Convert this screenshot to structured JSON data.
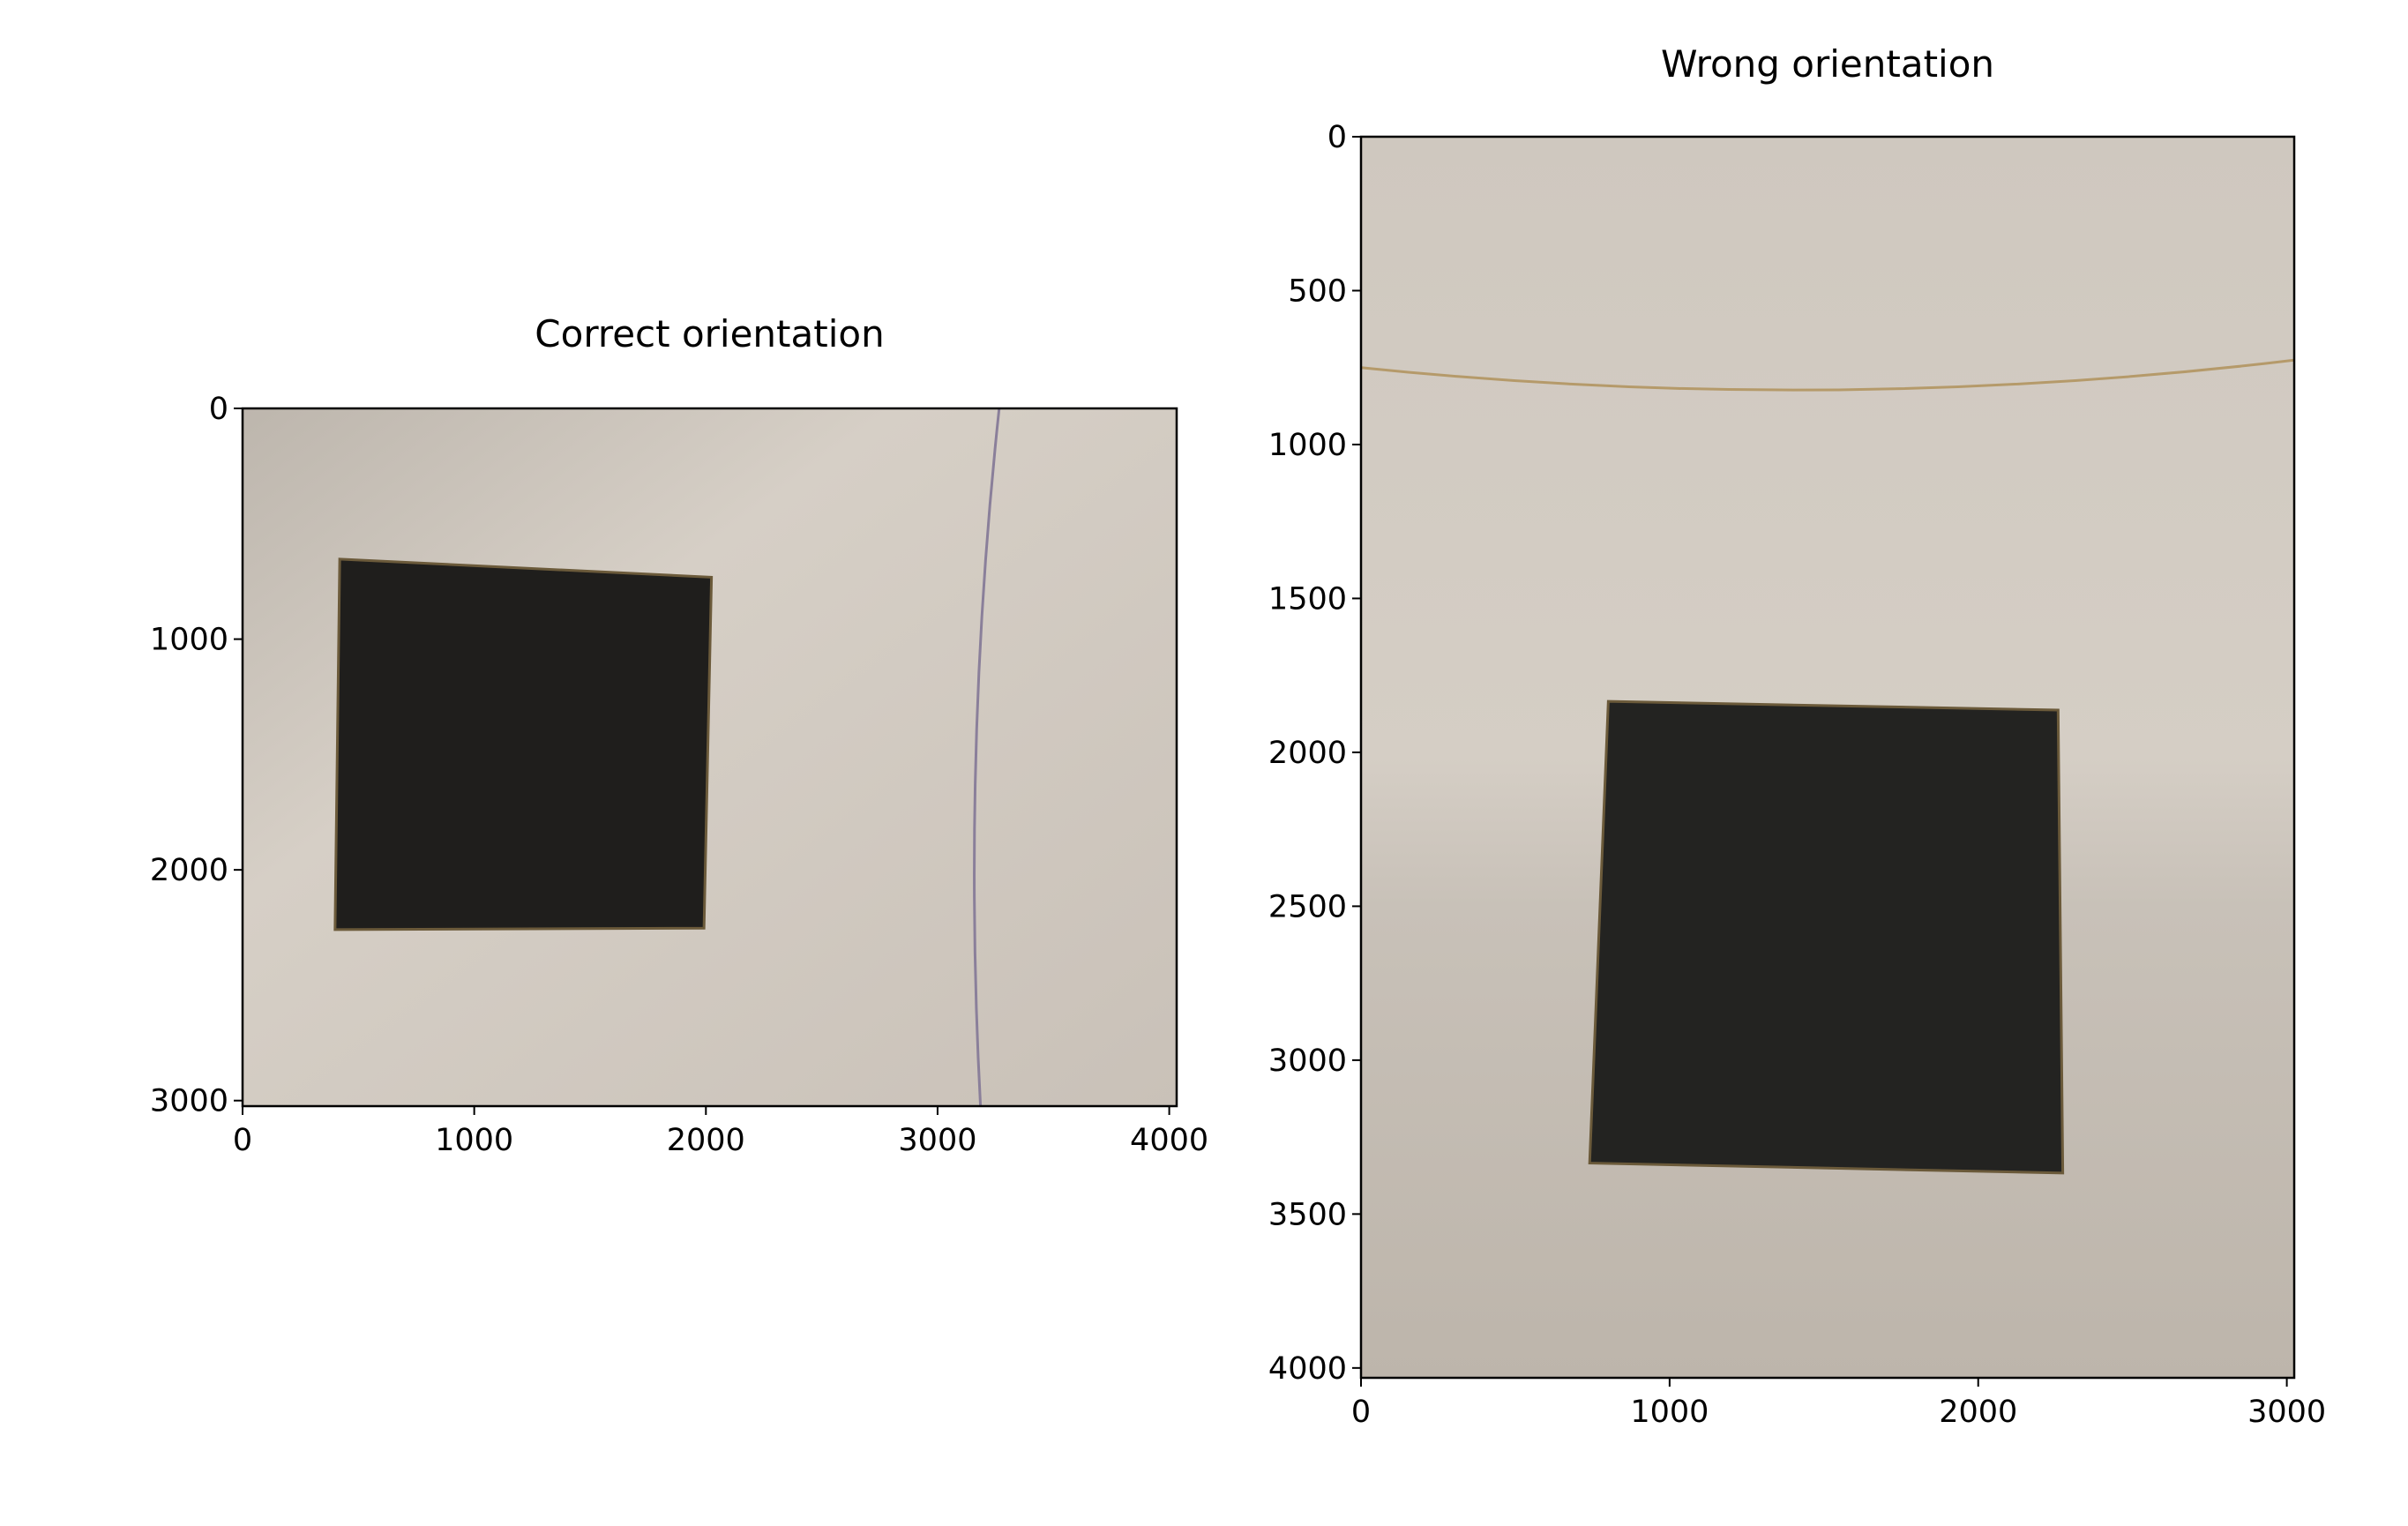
{
  "chart_data": [
    {
      "type": "image",
      "title": "Correct orientation",
      "xlim": [
        0,
        4032
      ],
      "ylim": [
        3024,
        0
      ],
      "xticks": [
        0,
        1000,
        2000,
        3000,
        4000
      ],
      "yticks": [
        0,
        1000,
        2000,
        3000
      ]
    },
    {
      "type": "image",
      "title": "Wrong orientation",
      "xlim": [
        0,
        3024
      ],
      "ylim": [
        4032,
        0
      ],
      "xticks": [
        0,
        1000,
        2000,
        3000
      ],
      "yticks": [
        0,
        500,
        1000,
        1500,
        2000,
        2500,
        3000,
        3500,
        4000
      ]
    }
  ]
}
